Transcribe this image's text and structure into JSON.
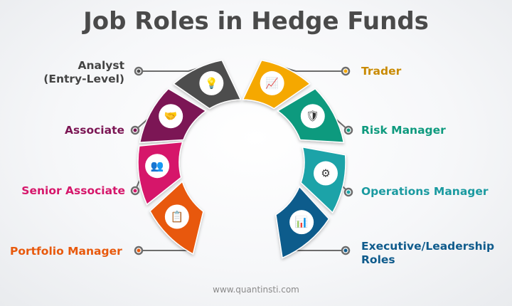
{
  "title": "Job Roles in Hedge Funds",
  "footer": "www.quantinsti.com",
  "roles": [
    {
      "label": "Analyst\n(Entry-Level)",
      "color": "#4d4d4d",
      "icon": "lightbulb-icon"
    },
    {
      "label": "Associate",
      "color": "#7b1654",
      "icon": "handshake-icon"
    },
    {
      "label": "Senior Associate",
      "color": "#d6176b",
      "icon": "team-group-icon"
    },
    {
      "label": "Portfolio Manager",
      "color": "#e8590c",
      "icon": "portfolio-document-icon"
    },
    {
      "label": "Trader",
      "color": "#f5a800",
      "icon": "trader-desk-icon"
    },
    {
      "label": "Risk Manager",
      "color": "#0e9a7e",
      "icon": "risk-hand-icon"
    },
    {
      "label": "Operations Manager",
      "color": "#1aa3a8",
      "icon": "user-gear-icon"
    },
    {
      "label": "Executive/Leadership\nRoles",
      "color": "#0f5b8c",
      "icon": "leadership-chart-icon"
    }
  ],
  "colors": {
    "title": "#4a4a4a",
    "analyst_label": "#444444",
    "associate_label": "#7b1654",
    "senior_label": "#d6176b",
    "portfolio_label": "#e8590c",
    "trader_label": "#c98a00",
    "risk_label": "#0e9a7e",
    "operations_label": "#1a9aa0",
    "executive_label": "#0f5b8c"
  }
}
